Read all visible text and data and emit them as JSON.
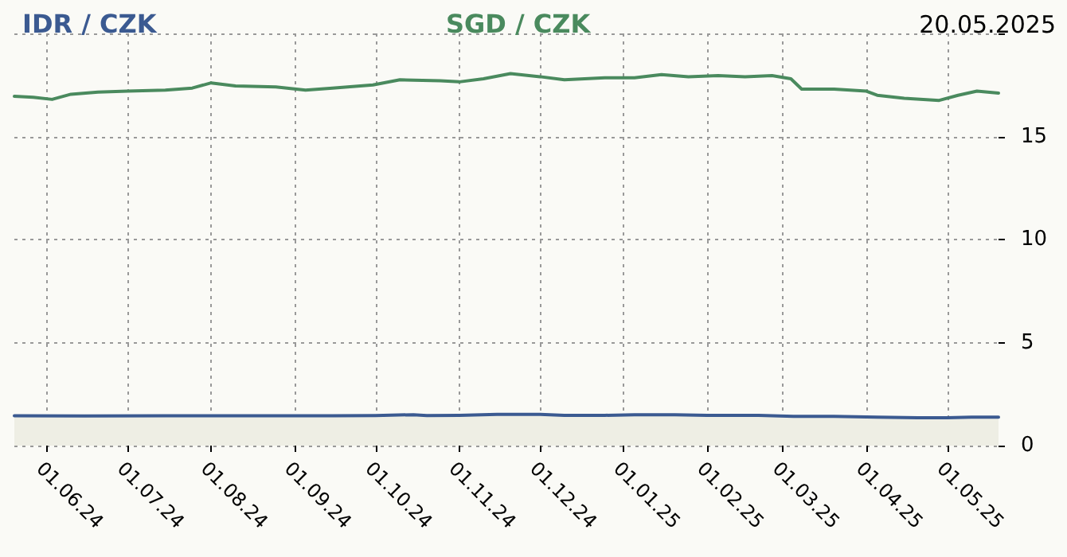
{
  "chart_data": {
    "type": "line",
    "title": "20.05.2025",
    "legend": "top",
    "grid": true,
    "marker": "none",
    "line_style": "solid",
    "xlim": [
      "2024-05-20",
      "2025-05-20"
    ],
    "xticks": [
      {
        "value": "2024-06-01",
        "label": "01.06.24"
      },
      {
        "value": "2024-07-01",
        "label": "01.07.24"
      },
      {
        "value": "2024-08-01",
        "label": "01.08.24"
      },
      {
        "value": "2024-09-01",
        "label": "01.09.24"
      },
      {
        "value": "2024-10-01",
        "label": "01.10.24"
      },
      {
        "value": "2024-11-01",
        "label": "01.11.24"
      },
      {
        "value": "2024-12-01",
        "label": "01.12.24"
      },
      {
        "value": "2025-01-01",
        "label": "01.01.25"
      },
      {
        "value": "2025-02-01",
        "label": "01.02.25"
      },
      {
        "value": "2025-03-01",
        "label": "01.03.25"
      },
      {
        "value": "2025-04-01",
        "label": "01.04.25"
      },
      {
        "value": "2025-05-01",
        "label": "01.05.25"
      }
    ],
    "ylim": [
      0,
      20
    ],
    "yticks": [
      0,
      5,
      10,
      15,
      {
        "value": 20,
        "label": null
      }
    ],
    "series": [
      {
        "name": "IDR / CZK",
        "type": "area",
        "color": "#3b5a91",
        "x": [
          "2024-05-20",
          "2024-06-15",
          "2024-07-15",
          "2024-08-15",
          "2024-09-15",
          "2024-10-01",
          "2024-10-15",
          "2024-10-20",
          "2024-11-01",
          "2024-11-15",
          "2024-12-01",
          "2024-12-10",
          "2024-12-25",
          "2025-01-05",
          "2025-01-20",
          "2025-02-01",
          "2025-02-20",
          "2025-03-05",
          "2025-03-20",
          "2025-04-05",
          "2025-04-20",
          "2025-05-01",
          "2025-05-10",
          "2025-05-20"
        ],
        "values": [
          1.45,
          1.44,
          1.45,
          1.45,
          1.45,
          1.46,
          1.5,
          1.46,
          1.47,
          1.52,
          1.52,
          1.47,
          1.47,
          1.5,
          1.5,
          1.47,
          1.47,
          1.42,
          1.42,
          1.38,
          1.35,
          1.35,
          1.38,
          1.38
        ]
      },
      {
        "name": "SGD / CZK",
        "color": "#4a8a5e",
        "x": [
          "2024-05-20",
          "2024-05-27",
          "2024-06-03",
          "2024-06-10",
          "2024-06-20",
          "2024-07-01",
          "2024-07-15",
          "2024-07-25",
          "2024-08-01",
          "2024-08-10",
          "2024-08-25",
          "2024-09-05",
          "2024-09-15",
          "2024-09-30",
          "2024-10-10",
          "2024-10-25",
          "2024-11-01",
          "2024-11-10",
          "2024-11-20",
          "2024-12-01",
          "2024-12-10",
          "2024-12-25",
          "2025-01-05",
          "2025-01-15",
          "2025-01-25",
          "2025-02-05",
          "2025-02-15",
          "2025-02-25",
          "2025-03-04",
          "2025-03-08",
          "2025-03-20",
          "2025-04-01",
          "2025-04-05",
          "2025-04-15",
          "2025-04-28",
          "2025-05-05",
          "2025-05-12",
          "2025-05-20"
        ],
        "values": [
          16.95,
          16.9,
          16.8,
          17.05,
          17.15,
          17.2,
          17.25,
          17.35,
          17.6,
          17.45,
          17.4,
          17.25,
          17.35,
          17.5,
          17.75,
          17.7,
          17.65,
          17.8,
          18.05,
          17.9,
          17.75,
          17.85,
          17.85,
          18.0,
          17.9,
          17.95,
          17.9,
          17.95,
          17.8,
          17.3,
          17.3,
          17.2,
          17.0,
          16.85,
          16.75,
          17.0,
          17.2,
          17.1
        ]
      }
    ]
  }
}
